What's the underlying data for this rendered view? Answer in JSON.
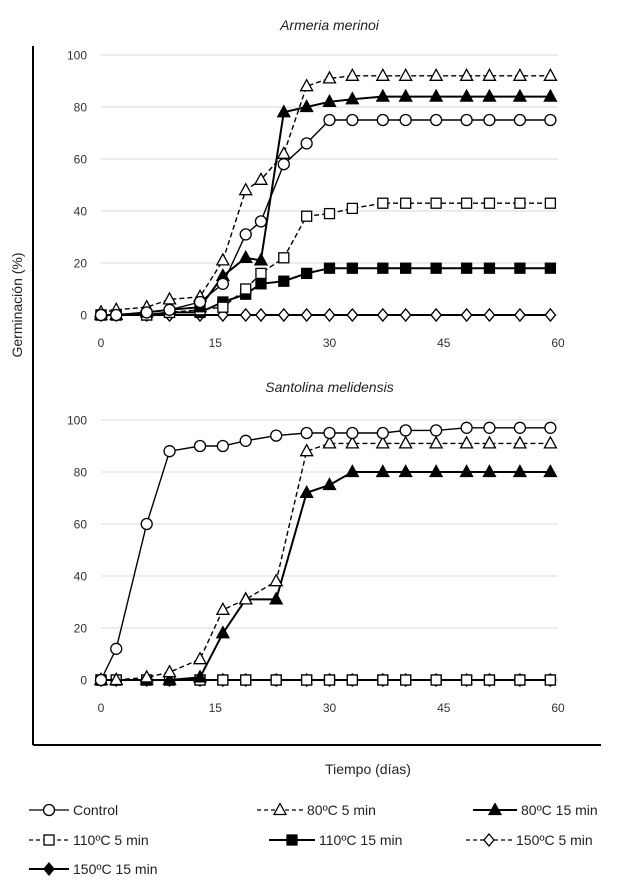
{
  "figure": {
    "ylabel": "Germinación (%)",
    "xlabel": "Tiempo (días)"
  },
  "chart_data": [
    {
      "type": "line",
      "title": "Armeria merinoi",
      "xlim": [
        0,
        60
      ],
      "ylim": [
        0,
        100
      ],
      "xticks": [
        "0",
        "15",
        "30",
        "45",
        "60"
      ],
      "yticks": [
        "0",
        "20",
        "40",
        "60",
        "80",
        "100"
      ],
      "grid": true,
      "series": [
        {
          "name": "Control",
          "x": [
            0,
            2,
            6,
            9,
            13,
            16,
            19,
            21,
            24,
            27,
            30,
            33,
            37,
            40,
            44,
            48,
            51,
            55,
            59
          ],
          "y": [
            0,
            0,
            1,
            2,
            5,
            12,
            31,
            36,
            58,
            66,
            75,
            75,
            75,
            75,
            75,
            75,
            75,
            75,
            75
          ]
        },
        {
          "name": "80ºC 5 min",
          "x": [
            0,
            2,
            6,
            9,
            13,
            16,
            19,
            21,
            24,
            27,
            30,
            33,
            37,
            40,
            44,
            48,
            51,
            55,
            59
          ],
          "y": [
            1,
            2,
            3,
            6,
            7,
            21,
            48,
            52,
            62,
            88,
            91,
            92,
            92,
            92,
            92,
            92,
            92,
            92,
            92
          ]
        },
        {
          "name": "80ºC 15 min",
          "x": [
            0,
            2,
            6,
            9,
            13,
            16,
            19,
            21,
            24,
            27,
            30,
            33,
            37,
            40,
            44,
            48,
            51,
            55,
            59
          ],
          "y": [
            0,
            0,
            1,
            2,
            3,
            15,
            22,
            21,
            78,
            80,
            82,
            83,
            84,
            84,
            84,
            84,
            84,
            84,
            84
          ]
        },
        {
          "name": "110ºC 5 min",
          "x": [
            0,
            2,
            6,
            9,
            13,
            16,
            19,
            21,
            24,
            27,
            30,
            33,
            37,
            40,
            44,
            48,
            51,
            55,
            59
          ],
          "y": [
            0,
            0,
            0,
            1,
            2,
            3,
            10,
            16,
            22,
            38,
            39,
            41,
            43,
            43,
            43,
            43,
            43,
            43,
            43
          ]
        },
        {
          "name": "110ºC 15 min",
          "x": [
            0,
            2,
            6,
            9,
            13,
            16,
            19,
            21,
            24,
            27,
            30,
            33,
            37,
            40,
            44,
            48,
            51,
            55,
            59
          ],
          "y": [
            0,
            0,
            0,
            1,
            1,
            5,
            8,
            12,
            13,
            16,
            18,
            18,
            18,
            18,
            18,
            18,
            18,
            18,
            18
          ]
        },
        {
          "name": "150ºC 5 min",
          "x": [
            0,
            2,
            6,
            9,
            13,
            16,
            19,
            21,
            24,
            27,
            30,
            33,
            37,
            40,
            44,
            48,
            51,
            55,
            59
          ],
          "y": [
            0,
            0,
            0,
            0,
            0,
            0,
            0,
            0,
            0,
            0,
            0,
            0,
            0,
            0,
            0,
            0,
            0,
            0,
            0
          ]
        },
        {
          "name": "150ºC 15 min",
          "x": [
            0,
            2,
            6,
            9,
            13,
            16,
            19,
            21,
            24,
            27,
            30,
            33,
            37,
            40,
            44,
            48,
            51,
            55,
            59
          ],
          "y": [
            0,
            0,
            0,
            0,
            0,
            0,
            0,
            0,
            0,
            0,
            0,
            0,
            0,
            0,
            0,
            0,
            0,
            0,
            0
          ]
        }
      ]
    },
    {
      "type": "line",
      "title": "Santolina melidensis",
      "xlim": [
        0,
        60
      ],
      "ylim": [
        0,
        100
      ],
      "xticks": [
        "0",
        "15",
        "30",
        "45",
        "60"
      ],
      "yticks": [
        "0",
        "20",
        "40",
        "60",
        "80",
        "100"
      ],
      "grid": true,
      "series": [
        {
          "name": "Control",
          "x": [
            0,
            2,
            6,
            9,
            13,
            16,
            19,
            23,
            27,
            30,
            33,
            37,
            40,
            44,
            48,
            51,
            55,
            59
          ],
          "y": [
            0,
            12,
            60,
            88,
            90,
            90,
            92,
            94,
            95,
            95,
            95,
            95,
            96,
            96,
            97,
            97,
            97,
            97
          ]
        },
        {
          "name": "80ºC 5 min",
          "x": [
            0,
            2,
            6,
            9,
            13,
            16,
            19,
            23,
            27,
            30,
            33,
            37,
            40,
            44,
            48,
            51,
            55,
            59
          ],
          "y": [
            0,
            0,
            1,
            3,
            8,
            27,
            31,
            38,
            88,
            91,
            91,
            91,
            91,
            91,
            91,
            91,
            91,
            91
          ]
        },
        {
          "name": "80ºC 15 min",
          "x": [
            0,
            2,
            6,
            9,
            13,
            16,
            19,
            23,
            27,
            30,
            33,
            37,
            40,
            44,
            48,
            51,
            55,
            59
          ],
          "y": [
            0,
            0,
            0,
            0,
            1,
            18,
            31,
            31,
            72,
            75,
            80,
            80,
            80,
            80,
            80,
            80,
            80,
            80
          ]
        },
        {
          "name": "110ºC 5 min",
          "x": [
            0,
            2,
            6,
            9,
            13,
            16,
            19,
            23,
            27,
            30,
            33,
            37,
            40,
            44,
            48,
            51,
            55,
            59
          ],
          "y": [
            0,
            0,
            0,
            0,
            0,
            0,
            0,
            0,
            0,
            0,
            0,
            0,
            0,
            0,
            0,
            0,
            0,
            0
          ]
        },
        {
          "name": "110ºC 15 min",
          "x": [
            0,
            2,
            6,
            9,
            13,
            16,
            19,
            23,
            27,
            30,
            33,
            37,
            40,
            44,
            48,
            51,
            55,
            59
          ],
          "y": [
            0,
            0,
            0,
            0,
            0,
            0,
            0,
            0,
            0,
            0,
            0,
            0,
            0,
            0,
            0,
            0,
            0,
            0
          ]
        },
        {
          "name": "150ºC 5 min",
          "x": [
            0,
            2,
            6,
            9,
            13,
            16,
            19,
            23,
            27,
            30,
            33,
            37,
            40,
            44,
            48,
            51,
            55,
            59
          ],
          "y": [
            0,
            0,
            0,
            0,
            0,
            0,
            0,
            0,
            0,
            0,
            0,
            0,
            0,
            0,
            0,
            0,
            0,
            0
          ]
        },
        {
          "name": "150ºC 15 min",
          "x": [
            0,
            2,
            6,
            9,
            13,
            16,
            19,
            23,
            27,
            30,
            33,
            37,
            40,
            44,
            48,
            51,
            55,
            59
          ],
          "y": [
            0,
            0,
            0,
            0,
            0,
            0,
            0,
            0,
            0,
            0,
            0,
            0,
            0,
            0,
            0,
            0,
            0,
            0
          ]
        }
      ]
    }
  ],
  "legend": [
    {
      "label": "Control",
      "marker": "circle-open",
      "dash": "solid"
    },
    {
      "label": "80ºC 5 min",
      "marker": "triangle-open",
      "dash": "dashed"
    },
    {
      "label": "80ºC 15 min",
      "marker": "triangle-filled",
      "dash": "solid"
    },
    {
      "label": "110ºC 5 min",
      "marker": "square-open",
      "dash": "dashed"
    },
    {
      "label": "110ºC 15 min",
      "marker": "square-filled",
      "dash": "solid"
    },
    {
      "label": "150ºC 5 min",
      "marker": "diamond-open",
      "dash": "dashed"
    },
    {
      "label": "150ºC 15 min",
      "marker": "diamond-filled",
      "dash": "solid"
    }
  ]
}
